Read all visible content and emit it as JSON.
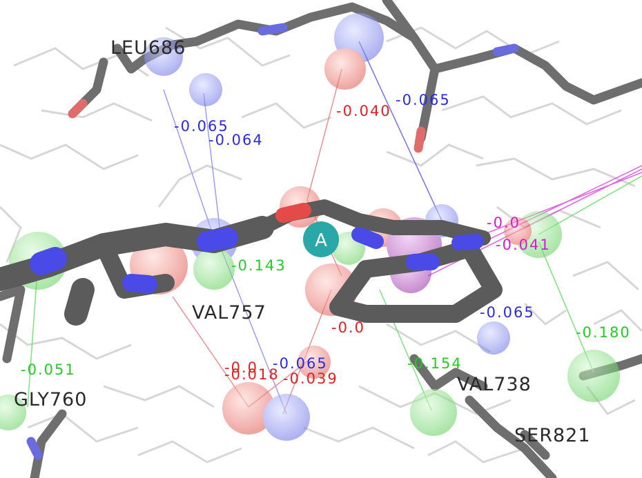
{
  "residue_labels": {
    "leu686": "LEU686",
    "val757": "VAL757",
    "gly760": "GLY760",
    "val738": "VAL738",
    "ser821": "SER821"
  },
  "interaction_values": {
    "v1": "-0.065",
    "v2": "-0.064",
    "v3": "-0.040",
    "v4": "-0.065",
    "v5": "-0.143",
    "v6": "-0.051",
    "v7": "-0.0",
    "v8": "-0.065",
    "v9": "-0.039",
    "v10": "-0.018",
    "v11": "-0.0",
    "v12": "-0.154",
    "v13": "-0.065",
    "v14": "-0.180",
    "v15": "-0.0",
    "v16": "-0.041"
  },
  "marker": {
    "label": "A",
    "color": "#2aa8a8"
  },
  "colors": {
    "negative_strong": "#e82020",
    "blue": "#2222dd",
    "green": "#22cc22",
    "magenta": "#cc22cc",
    "ligand": "#555555"
  }
}
